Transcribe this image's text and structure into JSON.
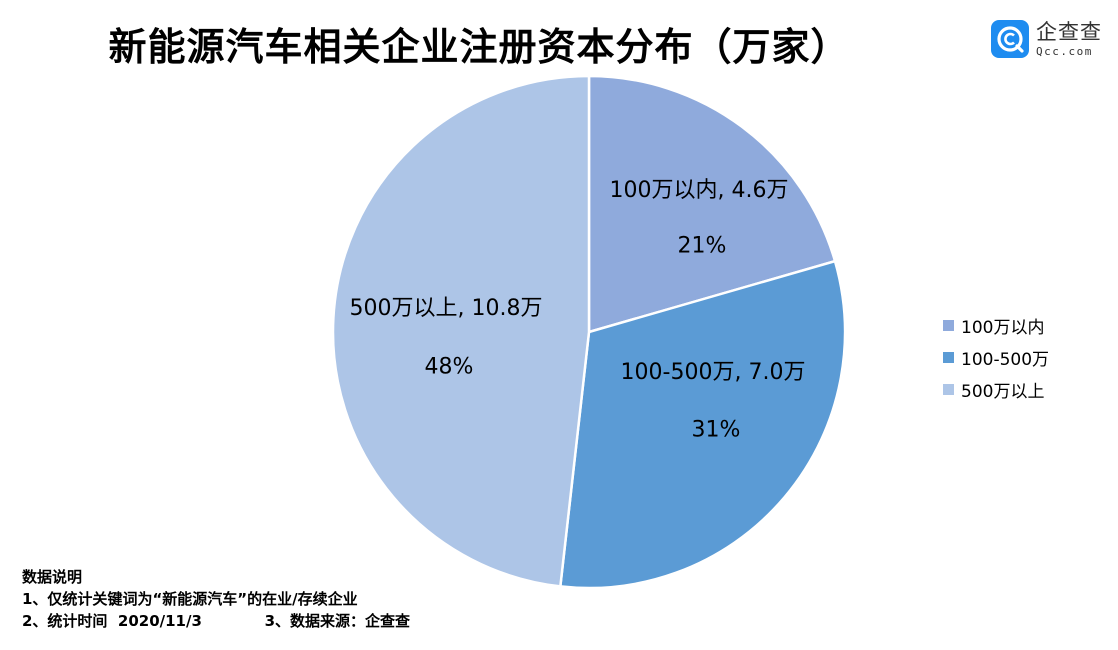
{
  "title": "新能源汽车相关企业注册资本分布（万家）",
  "logo": {
    "cn": "企查查",
    "en": "Qcc.com",
    "color": "#1e8cf0"
  },
  "chart_data": {
    "type": "pie",
    "title": "新能源汽车相关企业注册资本分布（万家）",
    "unit": "万家",
    "categories": [
      "100万以内",
      "100-500万",
      "500万以上"
    ],
    "values": [
      4.6,
      7.0,
      10.8
    ],
    "percentages": [
      21,
      31,
      48
    ],
    "colors": [
      "#8faadc",
      "#5b9bd5",
      "#adc5e7"
    ],
    "start_angle": "12 o'clock, clockwise",
    "legend_position": "right",
    "data_labels": [
      {
        "text": "100万以内, 4.6万",
        "pct": "21%"
      },
      {
        "text": "100-500万, 7.0万",
        "pct": "31%"
      },
      {
        "text": "500万以上, 10.8万",
        "pct": "48%"
      }
    ]
  },
  "legend": [
    {
      "label": "100万以内",
      "color": "#8faadc"
    },
    {
      "label": "100-500万",
      "color": "#5b9bd5"
    },
    {
      "label": "500万以上",
      "color": "#adc5e7"
    }
  ],
  "notes": {
    "heading": "数据说明",
    "line1": "1、仅统计关键词为“新能源汽车”的在业/存续企业",
    "line2": "2、统计时间  2020/11/3            3、数据来源：企查查"
  }
}
